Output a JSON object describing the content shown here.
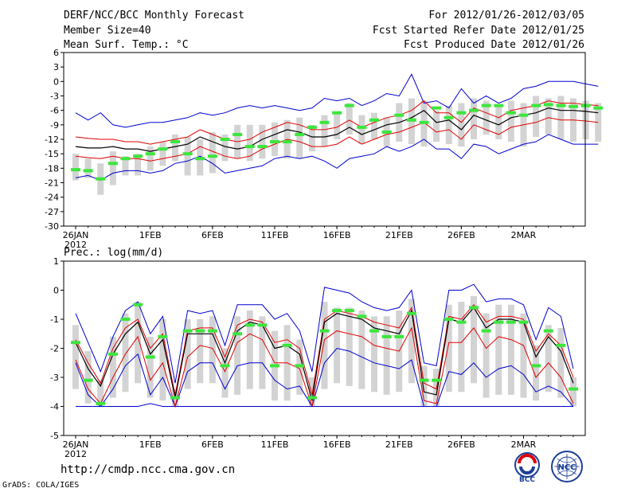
{
  "header": {
    "title": "DERF/NCC/BCC Monthly Forecast",
    "member_size": "Member Size=40",
    "variable": "Mean Surf. Temp.: °C",
    "for_range": "For 2012/01/26-2012/03/05",
    "fcst_started": "Fcst Started Refer Date 2012/01/25",
    "fcst_produced": "Fcst Produced Date 2012/01/26"
  },
  "footer": {
    "url": "http://cmdp.ncc.cma.gov.cn",
    "grads": "GrADS: COLA/IGES",
    "logo_bcc": "BCC",
    "logo_ncc": "NCC"
  },
  "colors": {
    "box": "#d3d3d3",
    "mean": "#000000",
    "spread": "#e00000",
    "envelope": "#0000d0",
    "obs": "#3ce63c"
  },
  "chart_data": [
    {
      "type": "line",
      "title": "Mean Surf. Temp.: °C",
      "x_tick_labels": [
        "26JAN",
        "1FEB",
        "6FEB",
        "11FEB",
        "16FEB",
        "21FEB",
        "26FEB",
        "2MAR"
      ],
      "x_tick_sub": "2012",
      "x_tick_days": [
        0,
        6,
        11,
        16,
        21,
        26,
        31,
        36
      ],
      "yticks": [
        6,
        3,
        0,
        -3,
        -6,
        -9,
        -12,
        -15,
        -18,
        -21,
        -24,
        -27,
        -30
      ],
      "ylim": [
        -30,
        6
      ],
      "days": 40,
      "series": {
        "mean": [
          -13.5,
          -13.8,
          -13.8,
          -13.5,
          -14.0,
          -14.0,
          -14.5,
          -14.0,
          -13.5,
          -13.0,
          -11.5,
          -12.5,
          -13.5,
          -14.0,
          -13.5,
          -12.0,
          -11.0,
          -10.0,
          -10.5,
          -11.5,
          -11.5,
          -11.0,
          -9.5,
          -11.0,
          -10.0,
          -9.0,
          -8.5,
          -7.5,
          -6.0,
          -8.5,
          -8.0,
          -10.0,
          -7.0,
          -8.0,
          -9.0,
          -7.5,
          -7.0,
          -6.5,
          -5.5,
          -6.0,
          -6.0,
          -6.2,
          -6.5
        ],
        "upper": [
          -11.5,
          -11.8,
          -12.0,
          -12.0,
          -12.5,
          -12.5,
          -13.0,
          -12.5,
          -12.0,
          -11.5,
          -10.0,
          -11.0,
          -12.0,
          -12.5,
          -12.0,
          -10.5,
          -9.5,
          -8.5,
          -9.0,
          -10.0,
          -10.0,
          -9.5,
          -8.0,
          -9.5,
          -8.5,
          -7.5,
          -7.0,
          -6.0,
          -4.0,
          -6.5,
          -6.5,
          -8.5,
          -5.5,
          -6.5,
          -7.5,
          -6.0,
          -5.5,
          -5.0,
          -4.0,
          -4.5,
          -4.5,
          -4.8,
          -5.0
        ],
        "lower": [
          -15.5,
          -15.8,
          -16.0,
          -15.5,
          -16.0,
          -16.0,
          -16.5,
          -16.0,
          -15.5,
          -15.0,
          -13.5,
          -14.5,
          -15.5,
          -16.0,
          -15.5,
          -14.0,
          -13.0,
          -12.0,
          -12.5,
          -13.5,
          -13.5,
          -13.0,
          -11.5,
          -13.0,
          -12.0,
          -11.0,
          -10.5,
          -9.5,
          -8.5,
          -10.5,
          -10.0,
          -12.0,
          -9.0,
          -10.0,
          -11.0,
          -9.5,
          -9.0,
          -8.5,
          -7.5,
          -8.0,
          -8.0,
          -8.2,
          -8.5
        ],
        "max": [
          -6.5,
          -8.0,
          -6.5,
          -9.0,
          -9.5,
          -9.0,
          -8.5,
          -8.5,
          -8.0,
          -7.5,
          -6.5,
          -7.0,
          -6.5,
          -5.5,
          -5.0,
          -5.5,
          -5.0,
          -5.5,
          -6.0,
          -5.5,
          -3.5,
          -4.0,
          -3.5,
          -5.0,
          -4.0,
          -2.5,
          -3.0,
          1.5,
          -4.5,
          -4.0,
          -5.5,
          -1.5,
          -4.5,
          -3.0,
          -4.5,
          -3.5,
          -1.5,
          -1.0,
          0.0,
          0.0,
          0.0,
          -0.5,
          -1.0
        ],
        "min": [
          -20.0,
          -19.5,
          -20.5,
          -19.0,
          -18.5,
          -18.5,
          -19.0,
          -18.5,
          -17.0,
          -16.5,
          -15.5,
          -17.0,
          -19.0,
          -18.5,
          -18.0,
          -17.5,
          -16.0,
          -15.5,
          -16.0,
          -15.5,
          -16.5,
          -18.0,
          -16.0,
          -15.5,
          -15.0,
          -13.5,
          -14.5,
          -13.5,
          -12.0,
          -14.0,
          -14.0,
          -16.0,
          -13.0,
          -13.5,
          -15.0,
          -14.0,
          -13.0,
          -12.5,
          -11.0,
          -12.0,
          -13.0,
          -13.0,
          -13.0
        ],
        "obs": [
          -18.3,
          -18.5,
          -20.2,
          -17.0,
          -16.0,
          -15.5,
          -15.0,
          -14.0,
          -12.5,
          -15.0,
          -16.0,
          -15.5,
          -12.0,
          -11.0,
          -13.5,
          -13.5,
          -12.5,
          -12.5,
          -11.0,
          -9.5,
          -8.5,
          -6.5,
          -5.0,
          -9.5,
          -8.0,
          -10.5,
          -7.0,
          -8.0,
          -8.5,
          -5.5,
          -7.5,
          -6.5,
          -6.0,
          -5.0,
          -5.0,
          -6.5,
          -7.0,
          -5.0,
          -4.8,
          -5.0,
          -5.2,
          -5.0,
          -5.5
        ],
        "box_top": [
          -15.0,
          -16.0,
          -17.0,
          -14.5,
          -15.5,
          -15.0,
          -13.5,
          -12.5,
          -11.0,
          -11.5,
          -12.0,
          -10.5,
          -11.0,
          -9.0,
          -9.0,
          -9.0,
          -8.5,
          -8.0,
          -7.5,
          -9.0,
          -7.0,
          -6.5,
          -4.5,
          -7.0,
          -6.5,
          -7.5,
          -4.5,
          -3.5,
          -4.0,
          -6.0,
          -5.0,
          -4.5,
          -3.5,
          -4.0,
          -5.0,
          -4.0,
          -4.5,
          -3.0,
          -3.5,
          -3.0,
          -3.5,
          -4.0,
          -4.5
        ],
        "box_bottom": [
          -20.5,
          -20.0,
          -23.5,
          -21.5,
          -19.5,
          -19.5,
          -18.5,
          -17.5,
          -16.5,
          -19.5,
          -19.5,
          -19.0,
          -16.5,
          -16.0,
          -16.5,
          -16.0,
          -15.5,
          -16.0,
          -16.0,
          -14.5,
          -13.5,
          -12.0,
          -11.0,
          -13.0,
          -12.0,
          -13.5,
          -12.5,
          -13.0,
          -13.5,
          -12.5,
          -13.0,
          -13.5,
          -12.0,
          -11.0,
          -12.0,
          -12.5,
          -13.5,
          -11.5,
          -11.0,
          -12.0,
          -12.5,
          -12.0,
          -12.5
        ]
      }
    },
    {
      "type": "line",
      "title": "Prec.: log(mm/d)",
      "x_tick_labels": [
        "26JAN",
        "1FEB",
        "6FEB",
        "11FEB",
        "16FEB",
        "21FEB",
        "26FEB",
        "2MAR"
      ],
      "x_tick_sub": "2012",
      "x_tick_days": [
        0,
        6,
        11,
        16,
        21,
        26,
        31,
        36
      ],
      "yticks": [
        1,
        0,
        -1,
        -2,
        -3,
        -4,
        -5
      ],
      "ylim": [
        -5,
        1
      ],
      "days": 40,
      "series": {
        "mean": [
          -1.8,
          -2.7,
          -3.3,
          -2.2,
          -1.5,
          -1.1,
          -2.2,
          -1.7,
          -3.7,
          -1.5,
          -1.5,
          -1.5,
          -2.5,
          -1.4,
          -1.1,
          -1.2,
          -2.0,
          -1.9,
          -2.2,
          -3.8,
          -1.1,
          -0.8,
          -0.9,
          -1.0,
          -1.3,
          -1.4,
          -1.5,
          -0.7,
          -3.5,
          -3.6,
          -1.0,
          -1.1,
          -0.6,
          -1.3,
          -1.0,
          -1.0,
          -1.1,
          -2.3,
          -1.6,
          -2.1,
          -3.2
        ],
        "upper": [
          -1.7,
          -2.5,
          -3.2,
          -2.0,
          -1.3,
          -1.0,
          -2.0,
          -1.5,
          -3.6,
          -1.4,
          -1.3,
          -1.3,
          -2.3,
          -1.2,
          -1.0,
          -1.1,
          -1.8,
          -1.7,
          -2.0,
          -3.6,
          -1.0,
          -0.7,
          -0.8,
          -0.9,
          -1.1,
          -1.2,
          -1.3,
          -0.6,
          -3.2,
          -3.4,
          -0.9,
          -1.0,
          -0.5,
          -1.1,
          -0.9,
          -0.9,
          -1.0,
          -2.1,
          -1.5,
          -1.9,
          -3.0
        ],
        "lower": [
          -2.4,
          -3.4,
          -3.9,
          -3.0,
          -2.2,
          -1.6,
          -3.1,
          -2.5,
          -4.0,
          -2.3,
          -1.9,
          -2.0,
          -2.8,
          -1.8,
          -1.5,
          -1.7,
          -2.5,
          -2.5,
          -2.7,
          -4.0,
          -1.7,
          -1.4,
          -1.5,
          -1.6,
          -1.9,
          -2.0,
          -2.1,
          -1.3,
          -3.8,
          -3.9,
          -1.8,
          -1.8,
          -1.3,
          -2.0,
          -1.6,
          -1.7,
          -1.9,
          -3.0,
          -2.5,
          -3.0,
          -3.9
        ],
        "min": [
          -2.5,
          -3.6,
          -4.0,
          -3.4,
          -2.6,
          -2.2,
          -3.6,
          -3.0,
          -4.0,
          -2.8,
          -2.5,
          -2.5,
          -3.4,
          -2.6,
          -2.5,
          -2.5,
          -3.1,
          -3.4,
          -3.3,
          -4.0,
          -2.5,
          -2.0,
          -2.1,
          -2.3,
          -2.5,
          -2.6,
          -2.7,
          -2.4,
          -4.0,
          -4.0,
          -2.8,
          -2.9,
          -2.5,
          -3.0,
          -2.7,
          -2.6,
          -2.9,
          -3.5,
          -3.3,
          -3.5,
          -4.0
        ],
        "max": [
          -0.8,
          -1.8,
          -2.8,
          -1.6,
          -0.7,
          -0.4,
          -1.5,
          -0.9,
          -3.2,
          -0.7,
          -0.8,
          -0.7,
          -1.9,
          -0.5,
          -0.5,
          -0.5,
          -1.0,
          -0.8,
          -1.4,
          -2.8,
          0.1,
          0.0,
          -0.1,
          -0.4,
          -0.6,
          -0.7,
          -0.6,
          0.0,
          -2.5,
          -2.6,
          0.0,
          0.0,
          0.2,
          -0.4,
          -0.3,
          -0.3,
          -0.5,
          -1.7,
          -0.6,
          -0.9,
          -2.7
        ],
        "floor": [
          -4,
          -4,
          -4,
          -4,
          -4,
          -4,
          -3.9,
          -4,
          -4,
          -4,
          -4,
          -4,
          -4,
          -4,
          -4,
          -4,
          -4,
          -4,
          -4,
          -4,
          -4,
          -4,
          -4,
          -4,
          -4,
          -4,
          -4,
          -4,
          -4,
          -4,
          -4,
          -4,
          -4,
          -4,
          -4,
          -4,
          -4,
          -4,
          -4,
          -4,
          -4
        ],
        "obs": [
          -1.8,
          -3.1,
          -3.9,
          -2.2,
          -1.0,
          -0.5,
          -2.3,
          -1.6,
          -3.7,
          -1.4,
          -1.4,
          -1.4,
          -2.6,
          -1.5,
          -1.2,
          -1.2,
          -2.6,
          -1.9,
          -2.6,
          -3.7,
          -1.4,
          -0.7,
          -0.7,
          -0.9,
          -1.4,
          -1.6,
          -1.6,
          -0.8,
          -3.1,
          -3.1,
          -1.0,
          -1.1,
          -0.6,
          -1.4,
          -1.1,
          -1.1,
          -1.1,
          -2.6,
          -1.4,
          -1.9,
          -3.4
        ],
        "box_top": [
          -1.2,
          -2.1,
          -3.1,
          -1.6,
          -0.8,
          -0.4,
          -1.6,
          -1.0,
          -3.4,
          -1.0,
          -1.0,
          -0.9,
          -2.0,
          -0.9,
          -0.7,
          -0.9,
          -1.4,
          -1.2,
          -1.7,
          -3.0,
          -0.4,
          -0.6,
          -0.6,
          -0.7,
          -0.9,
          -0.9,
          -0.7,
          -0.3,
          -2.6,
          -2.7,
          -0.5,
          -0.4,
          -0.2,
          -0.8,
          -0.5,
          -0.5,
          -0.8,
          -1.9,
          -1.2,
          -1.3,
          -3.0
        ],
        "box_bottom": [
          -3.4,
          -3.9,
          -4.0,
          -3.7,
          -3.5,
          -3.2,
          -3.7,
          -3.8,
          -4.0,
          -3.4,
          -3.2,
          -3.2,
          -3.7,
          -3.6,
          -3.4,
          -3.4,
          -3.8,
          -3.8,
          -3.6,
          -4.0,
          -3.4,
          -3.2,
          -3.3,
          -3.4,
          -3.5,
          -3.6,
          -3.5,
          -3.2,
          -4.0,
          -4.0,
          -3.5,
          -3.5,
          -3.2,
          -3.7,
          -3.6,
          -3.6,
          -3.7,
          -3.8,
          -3.5,
          -3.7,
          -4.0
        ]
      }
    }
  ]
}
